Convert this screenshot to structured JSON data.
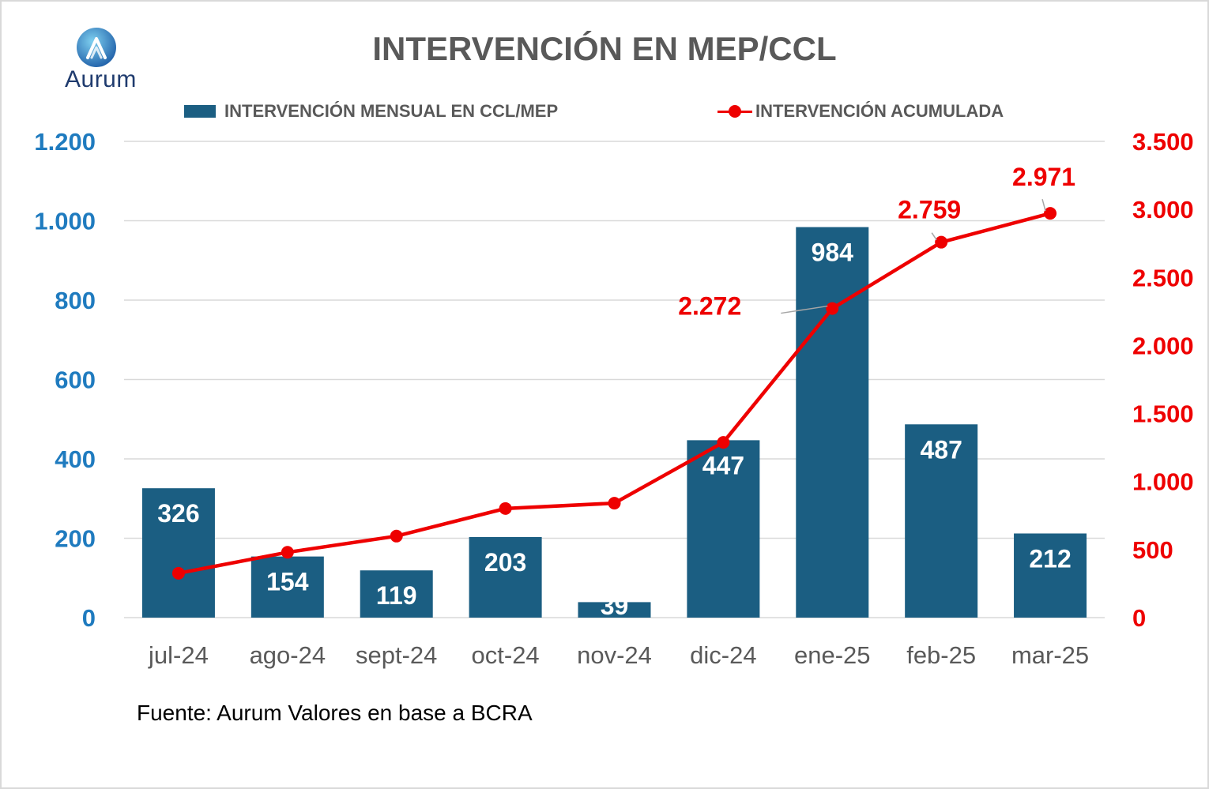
{
  "brand": {
    "logo_text": "Aurum",
    "logo_icon": "aurum-a-logo-icon"
  },
  "title": "INTERVENCIÓN EN MEP/CCL",
  "legend": {
    "bar_label": "INTERVENCIÓN MENSUAL EN CCL/MEP",
    "line_label": "INTERVENCIÓN ACUMULADA"
  },
  "source": "Fuente: Aurum Valores en base a BCRA",
  "colors": {
    "bar": "#1b5e82",
    "line": "#ee0000",
    "left_axis": "#1f7bbf",
    "right_axis": "#ee0000",
    "x_axis": "#595959",
    "grid": "#d9d9d9"
  },
  "chart_data": {
    "type": "bar+line",
    "categories": [
      "jul-24",
      "ago-24",
      "sept-24",
      "oct-24",
      "nov-24",
      "dic-24",
      "ene-25",
      "feb-25",
      "mar-25"
    ],
    "series": [
      {
        "name": "INTERVENCIÓN MENSUAL EN CCL/MEP",
        "type": "bar",
        "axis": "left",
        "values": [
          326,
          154,
          119,
          203,
          39,
          447,
          984,
          487,
          212
        ],
        "labels": [
          "326",
          "154",
          "119",
          "203",
          "39",
          "447",
          "984",
          "487",
          "212"
        ]
      },
      {
        "name": "INTERVENCIÓN ACUMULADA",
        "type": "line",
        "axis": "right",
        "values": [
          326,
          480,
          599,
          802,
          841,
          1288,
          2272,
          2759,
          2971
        ],
        "labels": [
          "",
          "",
          "",
          "",
          "",
          "",
          "2.272",
          "2.759",
          "2.971"
        ]
      }
    ],
    "left_axis": {
      "ylim": [
        0,
        1200
      ],
      "ticks": [
        0,
        200,
        400,
        600,
        800,
        1000,
        1200
      ],
      "tick_labels": [
        "0",
        "200",
        "400",
        "600",
        "800",
        "1.000",
        "1.200"
      ]
    },
    "right_axis": {
      "ylim": [
        0,
        3500
      ],
      "ticks": [
        0,
        500,
        1000,
        1500,
        2000,
        2500,
        3000,
        3500
      ],
      "tick_labels": [
        "0",
        "500",
        "1.000",
        "1.500",
        "2.000",
        "2.500",
        "3.000",
        "3.500"
      ]
    },
    "grid": true,
    "legend_position": "top"
  }
}
